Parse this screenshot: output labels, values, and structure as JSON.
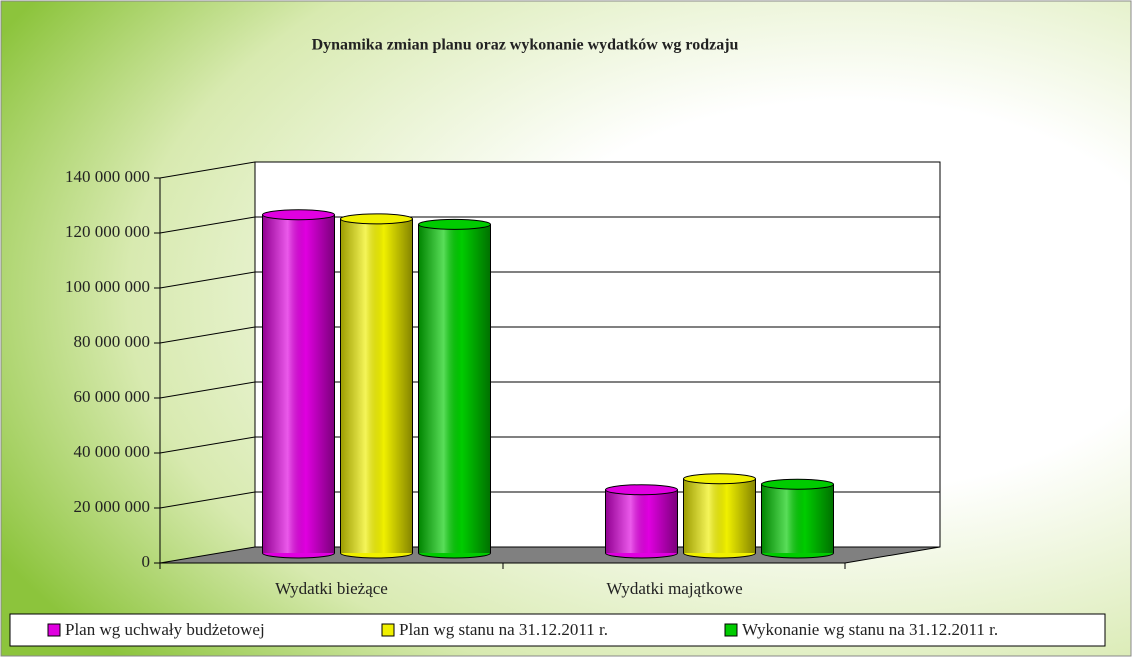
{
  "chart_data": {
    "type": "bar3d",
    "title": "Dynamika zmian planu oraz wykonanie wydatków wg rodzaju",
    "categories": [
      "Wydatki bieżące",
      "Wydatki majątkowe"
    ],
    "series": [
      {
        "name": "Plan wg uchwały budżetowej",
        "color": "#e000e0",
        "values": [
          123000000,
          23000000
        ]
      },
      {
        "name": "Plan wg stanu na 31.12.2011 r.",
        "color": "#f0f000",
        "values": [
          121500000,
          27000000
        ]
      },
      {
        "name": "Wykonanie wg stanu na 31.12.2011 r.",
        "color": "#00cc00",
        "values": [
          119500000,
          25000000
        ]
      }
    ],
    "ylim": [
      0,
      140000000
    ],
    "yticks": [
      0,
      {
        "value": 20000000,
        "label": "20 000 000"
      },
      {
        "value": 40000000,
        "label": "40 000 000"
      },
      {
        "value": 60000000,
        "label": "60 000 000"
      },
      {
        "value": 80000000,
        "label": "80 000 000"
      },
      {
        "value": 100000000,
        "label": "100 000 000"
      },
      {
        "value": 120000000,
        "label": "120 000 000"
      },
      {
        "value": 140000000,
        "label": "140 000 000"
      }
    ],
    "grid": true
  }
}
